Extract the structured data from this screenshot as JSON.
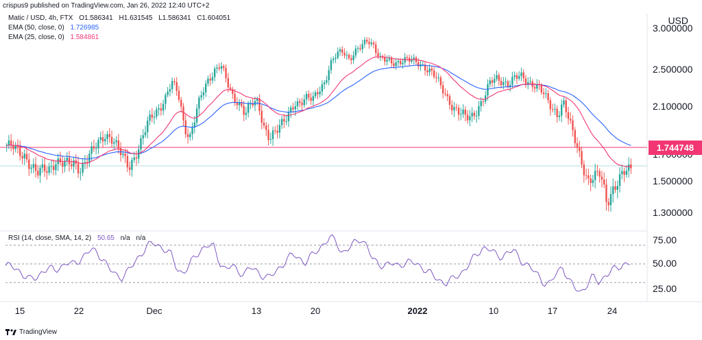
{
  "header": {
    "published": "crispus9 published on TradingView.com, Jan 26, 2022 12:40 UTC+2",
    "symbol_line": "Matic / USD, 4h, FTX",
    "ohlc": {
      "o": "O1.586341",
      "h": "H1.631545",
      "l": "L1.586341",
      "c": "C1.604051"
    }
  },
  "legend": {
    "ema50": {
      "label": "EMA (50, close, 0)",
      "value": "1.726985",
      "color": "#2962ff"
    },
    "ema25": {
      "label": "EMA (25, close, 0)",
      "value": "1.584861",
      "color": "#f23673"
    }
  },
  "price_axis": {
    "currency": "USD",
    "ticks": [
      "3.000000",
      "2.500000",
      "2.100000",
      "1.700000",
      "1.500000",
      "1.300000"
    ],
    "current_price": "1.744748"
  },
  "time_axis": {
    "ticks": [
      "15",
      "22",
      "Dec",
      "13",
      "20",
      "2022",
      "10",
      "17",
      "24"
    ]
  },
  "rsi": {
    "label": "RSI (14, close, SMA, 14, 2)",
    "value": "50.65",
    "na1": "n/a",
    "na2": "n/a",
    "ticks": [
      "75.00",
      "50.00",
      "25.00"
    ],
    "color": "#7e57c2"
  },
  "footer": {
    "brand": "TradingView"
  },
  "colors": {
    "up": "#26a69a",
    "down": "#ef5350",
    "hline": "#f23673",
    "ema50": "#2962ff",
    "ema25": "#f23673",
    "rsi": "#7e57c2"
  },
  "chart_data": [
    {
      "type": "candlestick",
      "title": "Matic / USD, 4h, FTX",
      "ylabel": "USD",
      "ylim": [
        1.2,
        3.1
      ],
      "grid": false,
      "x_ticks": [
        "15",
        "22",
        "Dec",
        "13",
        "20",
        "2022",
        "10",
        "17",
        "24"
      ],
      "y_ticks": [
        3.0,
        2.5,
        2.1,
        1.7,
        1.5,
        1.3
      ],
      "horizontal_line": 1.744748,
      "close_approx": [
        1.78,
        1.76,
        1.72,
        1.7,
        1.62,
        1.55,
        1.58,
        1.6,
        1.66,
        1.63,
        1.62,
        1.64,
        1.6,
        1.66,
        1.72,
        1.8,
        1.88,
        1.85,
        1.76,
        1.68,
        1.62,
        1.7,
        1.8,
        1.95,
        2.05,
        2.1,
        2.2,
        2.35,
        2.25,
        1.95,
        1.85,
        2.05,
        2.25,
        2.4,
        2.5,
        2.55,
        2.35,
        2.2,
        2.15,
        2.05,
        2.12,
        2.15,
        1.95,
        1.85,
        1.88,
        1.95,
        2.05,
        2.15,
        2.12,
        2.18,
        2.2,
        2.3,
        2.35,
        2.55,
        2.7,
        2.75,
        2.62,
        2.7,
        2.78,
        2.88,
        2.8,
        2.62,
        2.6,
        2.58,
        2.6,
        2.62,
        2.6,
        2.58,
        2.55,
        2.5,
        2.42,
        2.3,
        2.2,
        2.1,
        2.05,
        2.0,
        2.02,
        2.1,
        2.2,
        2.35,
        2.4,
        2.38,
        2.35,
        2.4,
        2.42,
        2.38,
        2.35,
        2.3,
        2.2,
        2.1,
        2.05,
        2.15,
        1.95,
        1.8,
        1.65,
        1.5,
        1.52,
        1.55,
        1.38,
        1.45,
        1.5,
        1.56,
        1.6
      ],
      "series": [
        {
          "name": "EMA (50, close, 0)",
          "last": 1.726985
        },
        {
          "name": "EMA (25, close, 0)",
          "last": 1.584861
        }
      ]
    },
    {
      "type": "line",
      "title": "RSI (14, close, SMA, 14, 2)",
      "ylim": [
        10,
        90
      ],
      "y_ticks": [
        75.0,
        50.0,
        25.0
      ],
      "reference_lines": [
        70,
        50,
        30
      ],
      "series": [
        {
          "name": "RSI (14, close, SMA, 14, 2)",
          "last": 50.65,
          "values": [
            48,
            47,
            44,
            38,
            33,
            35,
            42,
            45,
            43,
            47,
            51,
            49,
            54,
            60,
            65,
            62,
            55,
            44,
            38,
            36,
            42,
            50,
            60,
            68,
            72,
            70,
            66,
            60,
            45,
            40,
            48,
            58,
            66,
            70,
            68,
            52,
            44,
            48,
            42,
            40,
            46,
            42,
            38,
            35,
            40,
            48,
            55,
            60,
            56,
            52,
            58,
            65,
            72,
            78,
            74,
            62,
            66,
            72,
            78,
            70,
            54,
            50,
            49,
            50,
            48,
            51,
            52,
            50,
            47,
            42,
            36,
            32,
            30,
            33,
            38,
            44,
            52,
            60,
            68,
            66,
            60,
            58,
            62,
            64,
            56,
            50,
            44,
            38,
            30,
            28,
            40,
            48,
            32,
            24,
            20,
            28,
            36,
            30,
            38,
            42,
            46,
            50,
            51
          ]
        }
      ]
    }
  ]
}
